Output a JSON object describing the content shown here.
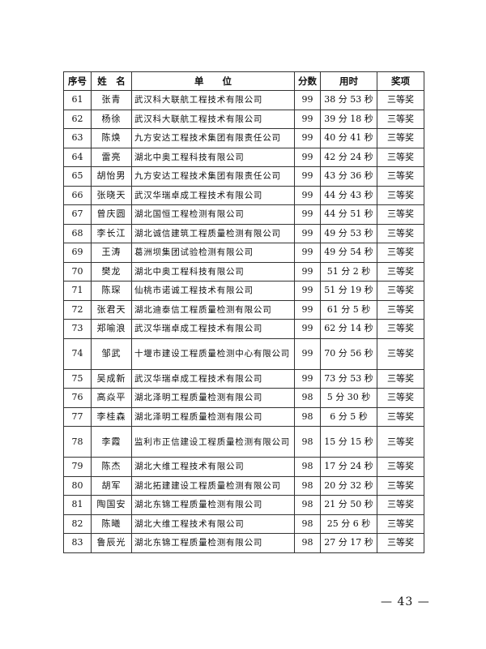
{
  "table": {
    "headers": [
      "序号",
      "姓　名",
      "单　　位",
      "分数",
      "用时",
      "奖项"
    ],
    "rows": [
      {
        "no": "61",
        "name": "张青",
        "unit": "武汉科大联航工程技术有限公司",
        "score": "99",
        "time": "38 分 53 秒",
        "award": "三等奖"
      },
      {
        "no": "62",
        "name": "杨徐",
        "unit": "武汉科大联航工程技术有限公司",
        "score": "99",
        "time": "39 分 18 秒",
        "award": "三等奖"
      },
      {
        "no": "63",
        "name": "陈焕",
        "unit": "九方安达工程技术集团有限责任公司",
        "score": "99",
        "time": "40 分 41 秒",
        "award": "三等奖"
      },
      {
        "no": "64",
        "name": "雷亮",
        "unit": "湖北中奥工程科技有限公司",
        "score": "99",
        "time": "42 分 24 秒",
        "award": "三等奖"
      },
      {
        "no": "65",
        "name": "胡怡男",
        "unit": "九方安达工程技术集团有限责任公司",
        "score": "99",
        "time": "43 分 36 秒",
        "award": "三等奖"
      },
      {
        "no": "66",
        "name": "张晓天",
        "unit": "武汉华瑞卓成工程技术有限公司",
        "score": "99",
        "time": "44 分 43 秒",
        "award": "三等奖"
      },
      {
        "no": "67",
        "name": "曾庆圆",
        "unit": "湖北国恒工程检测有限公司",
        "score": "99",
        "time": "44 分 51 秒",
        "award": "三等奖"
      },
      {
        "no": "68",
        "name": "李长江",
        "unit": "湖北诚信建筑工程质量检测有限公司",
        "score": "99",
        "time": "49 分 53 秒",
        "award": "三等奖"
      },
      {
        "no": "69",
        "name": "王涛",
        "unit": "葛洲坝集团试验检测有限公司",
        "score": "99",
        "time": "49 分 54 秒",
        "award": "三等奖"
      },
      {
        "no": "70",
        "name": "樊龙",
        "unit": "湖北中奥工程科技有限公司",
        "score": "99",
        "time": "51 分 2 秒",
        "award": "三等奖"
      },
      {
        "no": "71",
        "name": "陈琛",
        "unit": "仙桃市诺诚工程技术有限公司",
        "score": "99",
        "time": "51 分 19 秒",
        "award": "三等奖"
      },
      {
        "no": "72",
        "name": "张君天",
        "unit": "湖北迪泰信工程质量检测有限公司",
        "score": "99",
        "time": "61 分 5 秒",
        "award": "三等奖"
      },
      {
        "no": "73",
        "name": "郑喻浪",
        "unit": "武汉华瑞卓成工程技术有限公司",
        "score": "99",
        "time": "62 分 14 秒",
        "award": "三等奖"
      },
      {
        "no": "74",
        "name": "邹武",
        "unit": "十堰市建设工程质量检测中心有限公司",
        "score": "99",
        "time": "70 分 56 秒",
        "award": "三等奖"
      },
      {
        "no": "75",
        "name": "吴成新",
        "unit": "武汉华瑞卓成工程技术有限公司",
        "score": "99",
        "time": "73 分 53 秒",
        "award": "三等奖"
      },
      {
        "no": "76",
        "name": "高焱平",
        "unit": "湖北泽明工程质量检测有限公司",
        "score": "98",
        "time": "5 分 30 秒",
        "award": "三等奖"
      },
      {
        "no": "77",
        "name": "李桂森",
        "unit": "湖北泽明工程质量检测有限公司",
        "score": "98",
        "time": "6 分 5 秒",
        "award": "三等奖"
      },
      {
        "no": "78",
        "name": "李霞",
        "unit": "监利市正信建设工程质量检测有限公司",
        "score": "98",
        "time": "15 分 15 秒",
        "award": "三等奖"
      },
      {
        "no": "79",
        "name": "陈杰",
        "unit": "湖北大维工程技术有限公司",
        "score": "98",
        "time": "17 分 24 秒",
        "award": "三等奖"
      },
      {
        "no": "80",
        "name": "胡军",
        "unit": "湖北拓建建设工程质量检测有限公司",
        "score": "98",
        "time": "20 分 32 秒",
        "award": "三等奖"
      },
      {
        "no": "81",
        "name": "陶国安",
        "unit": "湖北东锦工程质量检测有限公司",
        "score": "98",
        "time": "21 分 50 秒",
        "award": "三等奖"
      },
      {
        "no": "82",
        "name": "陈曦",
        "unit": "湖北大维工程技术有限公司",
        "score": "98",
        "time": "25 分 6 秒",
        "award": "三等奖"
      },
      {
        "no": "83",
        "name": "鲁辰光",
        "unit": "湖北东锦工程质量检测有限公司",
        "score": "98",
        "time": "27 分 17 秒",
        "award": "三等奖"
      }
    ]
  },
  "page_number": "— 43 —"
}
